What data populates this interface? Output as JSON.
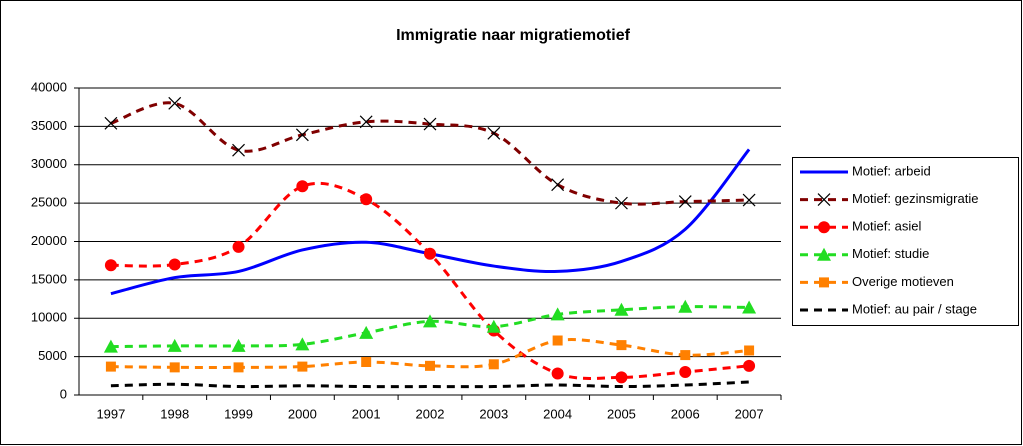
{
  "chart_data": {
    "type": "line",
    "title": "Immigratie naar migratiemotief",
    "categories": [
      "1997",
      "1998",
      "1999",
      "2000",
      "2001",
      "2002",
      "2003",
      "2004",
      "2005",
      "2006",
      "2007"
    ],
    "ylim": [
      0,
      40000
    ],
    "yticks": [
      0,
      5000,
      10000,
      15000,
      20000,
      25000,
      30000,
      35000,
      40000
    ],
    "grid": true,
    "legend": "right",
    "series": [
      {
        "name": "Motief: arbeid",
        "color": "#0000ff",
        "dash": false,
        "marker": null,
        "values": [
          13200,
          15300,
          16100,
          18900,
          19900,
          18400,
          16800,
          16100,
          17400,
          21600,
          32000
        ]
      },
      {
        "name": "Motief: gezinsmigratie",
        "color": "#800000",
        "dash": true,
        "marker": "x",
        "values": [
          35400,
          38000,
          31900,
          33900,
          35600,
          35300,
          34100,
          27400,
          25000,
          25200,
          25400
        ]
      },
      {
        "name": "Motief: asiel",
        "color": "#ff0000",
        "dash": true,
        "marker": "circle",
        "values": [
          16900,
          17000,
          19300,
          27200,
          25500,
          18400,
          8400,
          2800,
          2300,
          3000,
          3800
        ]
      },
      {
        "name": "Motief: studie",
        "color": "#22dd22",
        "dash": true,
        "marker": "triangle",
        "values": [
          6300,
          6400,
          6400,
          6600,
          8100,
          9600,
          8900,
          10500,
          11100,
          11500,
          11400
        ]
      },
      {
        "name": "Overige motieven",
        "color": "#ff8000",
        "dash": true,
        "marker": "square",
        "values": [
          3700,
          3600,
          3600,
          3700,
          4300,
          3800,
          4000,
          7100,
          6500,
          5200,
          5800
        ]
      },
      {
        "name": "Motief: au pair / stage",
        "color": "#000000",
        "dash": true,
        "marker": null,
        "values": [
          1200,
          1400,
          1100,
          1200,
          1100,
          1100,
          1100,
          1300,
          1100,
          1300,
          1700
        ]
      }
    ]
  }
}
